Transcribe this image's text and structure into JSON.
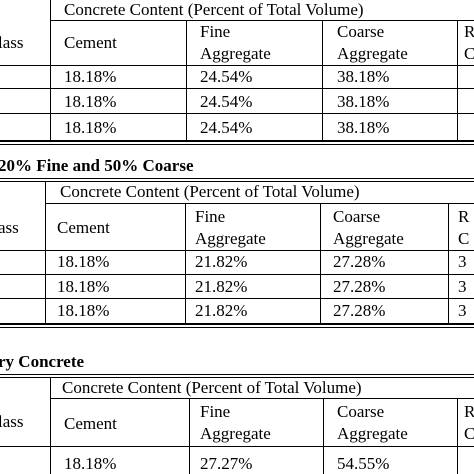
{
  "sections": [
    {
      "title": "",
      "rows": [
        [
          "18.18%",
          "24.54%",
          "38.18%"
        ],
        [
          "18.18%",
          "24.54%",
          "38.18%"
        ],
        [
          "18.18%",
          "24.54%",
          "38.18%"
        ]
      ]
    },
    {
      "title": "20% Fine and 50% Coarse",
      "rows": [
        [
          "18.18%",
          "21.82%",
          "27.28%",
          "3"
        ],
        [
          "18.18%",
          "21.82%",
          "27.28%",
          "3"
        ],
        [
          "18.18%",
          "21.82%",
          "27.28%",
          "3"
        ]
      ]
    },
    {
      "title": "ry Concrete",
      "rows": [
        [
          "18.18%",
          "27.27%",
          "54.55%"
        ]
      ]
    }
  ],
  "headers": {
    "class_label": "lass",
    "class_label_2": "ass",
    "content_span": "Concrete Content (Percent of Total Volume)",
    "cement": "Cement",
    "fine_1": "Fine",
    "fine_2": "Aggregate",
    "coarse_1": "Coarse",
    "coarse_2": "Aggregate",
    "r_1": "R",
    "r_2": "C"
  }
}
